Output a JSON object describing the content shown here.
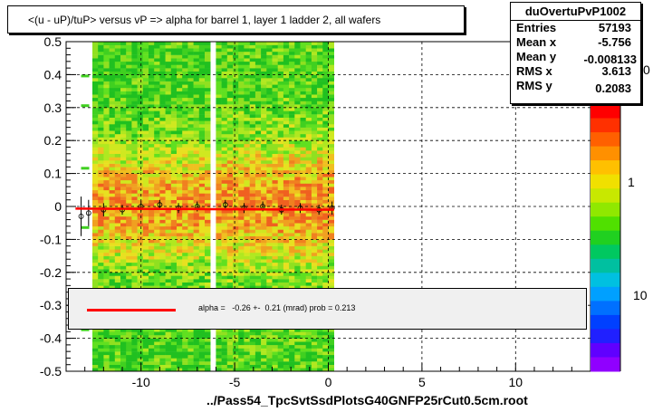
{
  "title": "<(u - uP)/tuP> versus   vP => alpha for barrel 1, layer 1 ladder 2, all wafers",
  "stats": {
    "name": "duOvertuPvP1002",
    "rows": [
      {
        "key": "Entries",
        "value": "57193"
      },
      {
        "key": "Mean x",
        "value": "-5.756"
      },
      {
        "key": "Mean y",
        "value": "-0.008133"
      },
      {
        "key": "RMS x",
        "value": "3.613"
      },
      {
        "key": "RMS y",
        "value": "0.2083"
      }
    ]
  },
  "fit": {
    "text": "alpha =   -0.26 +-  0.21 (mrad) prob = 0.213",
    "line_color": "#ff0000"
  },
  "footer": "../Pass54_TpcSvtSsdPlotsG40GNFP25rCut0.5cm.root",
  "colorbar": {
    "tick_labels": [
      "1",
      "10"
    ],
    "visible_upper_label": "0"
  },
  "chart_data": {
    "type": "heatmap",
    "title": "<(u - uP)/tuP> versus   vP => alpha for barrel 1, layer 1 ladder 2, all wafers",
    "xlabel": "",
    "ylabel": "",
    "xlim": [
      -14,
      14
    ],
    "ylim": [
      -0.5,
      0.5
    ],
    "x_ticks": [
      -10,
      -5,
      0,
      5,
      10
    ],
    "x_tick_labels": [
      "-10",
      "-5",
      "0",
      "5",
      "10"
    ],
    "y_ticks": [
      -0.5,
      -0.4,
      -0.3,
      -0.2,
      -0.1,
      0,
      0.1,
      0.2,
      0.3,
      0.4,
      0.5
    ],
    "y_tick_labels": [
      "-0.5",
      "-0.4",
      "-0.3",
      "-0.2",
      "-0.1",
      "0",
      "0.1",
      "0.2",
      "0.3",
      "0.4",
      "0.5"
    ],
    "grid": true,
    "data_x_range": [
      -12.6,
      0.1
    ],
    "gaps_x": [
      [
        -6.5,
        -6.1
      ]
    ],
    "colorscale": "rainbow (violet-low to red-high), log z",
    "fit_line": {
      "slope_mrad": -0.26,
      "error_mrad": 0.21,
      "prob": 0.213,
      "intercept": -0.01,
      "x_range": [
        -13.5,
        0.3
      ],
      "color": "#ff0000"
    },
    "profile_points": [
      {
        "x": -13.2,
        "y": -0.03,
        "err": 0.06
      },
      {
        "x": -12.8,
        "y": -0.02,
        "err": 0.04
      },
      {
        "x": -12.0,
        "y": -0.01,
        "err": 0.02
      },
      {
        "x": -11.0,
        "y": -0.01,
        "err": 0.015
      },
      {
        "x": -10.0,
        "y": 0.0,
        "err": 0.015
      },
      {
        "x": -9.0,
        "y": 0.005,
        "err": 0.015
      },
      {
        "x": -8.0,
        "y": -0.005,
        "err": 0.015
      },
      {
        "x": -7.0,
        "y": 0.0,
        "err": 0.015
      },
      {
        "x": -5.5,
        "y": 0.005,
        "err": 0.015
      },
      {
        "x": -4.5,
        "y": -0.005,
        "err": 0.015
      },
      {
        "x": -3.5,
        "y": 0.0,
        "err": 0.015
      },
      {
        "x": -2.5,
        "y": -0.01,
        "err": 0.015
      },
      {
        "x": -1.5,
        "y": -0.005,
        "err": 0.015
      },
      {
        "x": -0.5,
        "y": -0.01,
        "err": 0.015
      },
      {
        "x": 0.2,
        "y": -0.005,
        "err": 0.02
      }
    ]
  }
}
